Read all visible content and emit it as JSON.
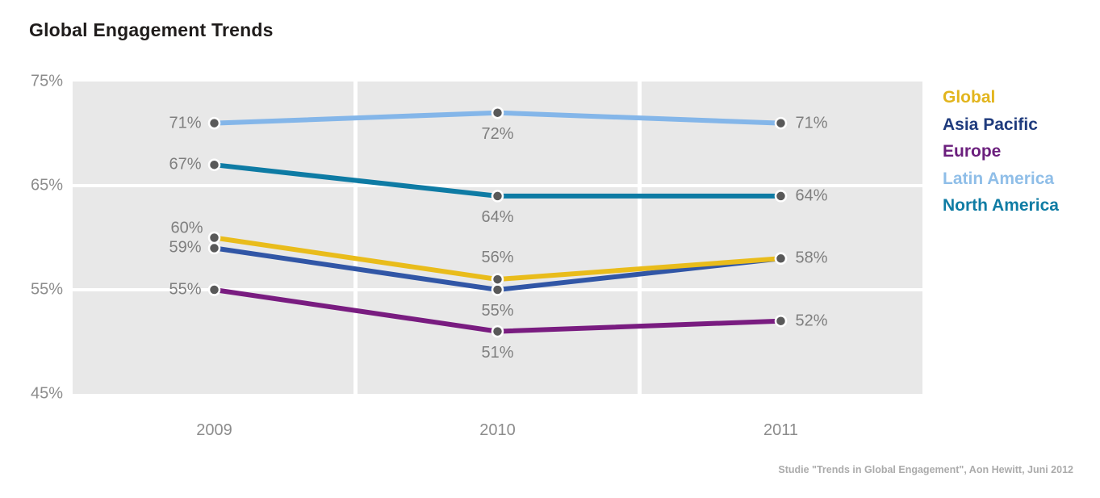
{
  "page": {
    "footer": "Studie \"Trends in Global Engagement\", Aon Hewitt, Juni 2012"
  },
  "chart_data": {
    "type": "line",
    "title": "Global Engagement Trends",
    "x_labels": [
      "2009",
      "2010",
      "2011"
    ],
    "y_ticks": [
      {
        "label": "75%",
        "value": 75
      },
      {
        "label": "65%",
        "value": 65
      },
      {
        "label": "55%",
        "value": 55
      },
      {
        "label": "45%",
        "value": 45
      }
    ],
    "ylim": [
      45,
      75
    ],
    "legend_position": "right",
    "grid": "white gridlines over gray bands",
    "plot_background": "#e8e8e8",
    "marker_color": "#595959",
    "point_label_color": "#7f7f7f",
    "axis_label_color": "#8c8c8c",
    "series": [
      {
        "name": "Global",
        "color": "#e9bc1b",
        "legend_color": "#e2b51d",
        "values": [
          60,
          56,
          58
        ],
        "point_labels": [
          "60%",
          "56%",
          "58%"
        ],
        "label_pos": [
          "left-up",
          "above",
          "right"
        ]
      },
      {
        "name": "Asia Pacific",
        "color": "#3156a6",
        "legend_color": "#1f3b7d",
        "values": [
          59,
          55,
          58
        ],
        "point_labels": [
          "59%",
          "55%",
          ""
        ],
        "label_pos": [
          "left",
          "below",
          "none"
        ]
      },
      {
        "name": "Europe",
        "color": "#791c80",
        "legend_color": "#6b1f7d",
        "values": [
          55,
          51,
          52
        ],
        "point_labels": [
          "55%",
          "51%",
          "52%"
        ],
        "label_pos": [
          "left",
          "below",
          "right"
        ]
      },
      {
        "name": "Latin America",
        "color": "#84b6e9",
        "legend_color": "#8fbee8",
        "values": [
          71,
          72,
          71
        ],
        "point_labels": [
          "71%",
          "72%",
          "71%"
        ],
        "label_pos": [
          "left",
          "below",
          "right"
        ]
      },
      {
        "name": "North America",
        "color": "#0e7ba4",
        "legend_color": "#0f7ca4",
        "values": [
          67,
          64,
          64
        ],
        "point_labels": [
          "67%",
          "64%",
          "64%"
        ],
        "label_pos": [
          "left",
          "below",
          "right"
        ]
      }
    ]
  }
}
